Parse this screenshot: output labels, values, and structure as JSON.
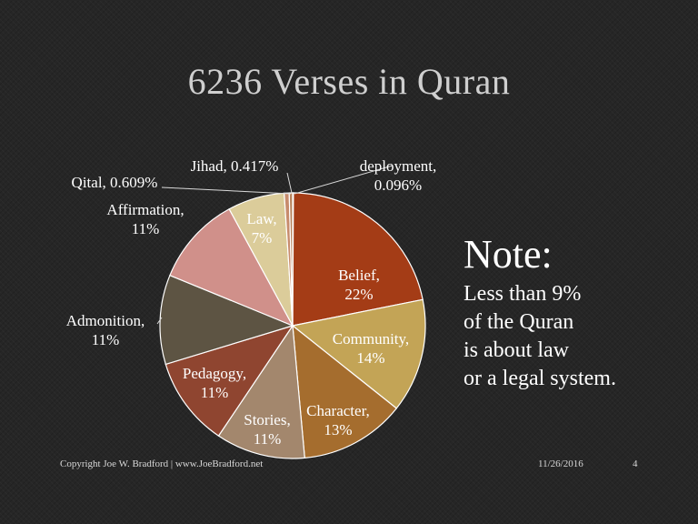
{
  "slide": {
    "title": "6236 Verses in Quran",
    "footer_copyright": "Copyright Joe W. Bradford | www.JoeBradford.net",
    "footer_date": "11/26/2016",
    "footer_page": "4"
  },
  "note": {
    "heading": "Note:",
    "lines": [
      "Less than 9%",
      "of the Quran",
      "is about law",
      "or a legal system."
    ]
  },
  "chart_data": {
    "type": "pie",
    "title": "",
    "slices": [
      {
        "label": "deployment, 0.096%",
        "value": 0.096,
        "color": "#e3a07a"
      },
      {
        "label": "Belief, 22%",
        "value": 22,
        "color": "#a43c16"
      },
      {
        "label": "Community, 14%",
        "value": 14,
        "color": "#c3a456"
      },
      {
        "label": "Character, 13%",
        "value": 13,
        "color": "#a56d2e"
      },
      {
        "label": "Stories, 11%",
        "value": 11,
        "color": "#a3876d"
      },
      {
        "label": "Pedagogy, 11%",
        "value": 11,
        "color": "#8f4530"
      },
      {
        "label": "Admonition, 11%",
        "value": 11,
        "color": "#5d5443"
      },
      {
        "label": "Affirmation, 11%",
        "value": 11,
        "color": "#d0908a"
      },
      {
        "label": "Law, 7%",
        "value": 7,
        "color": "#dbcc9a"
      },
      {
        "label": "Qital, 0.609%",
        "value": 0.609,
        "color": "#c78b6c"
      },
      {
        "label": "Jihad, 0.417%",
        "value": 0.417,
        "color": "#b8845e"
      }
    ]
  }
}
